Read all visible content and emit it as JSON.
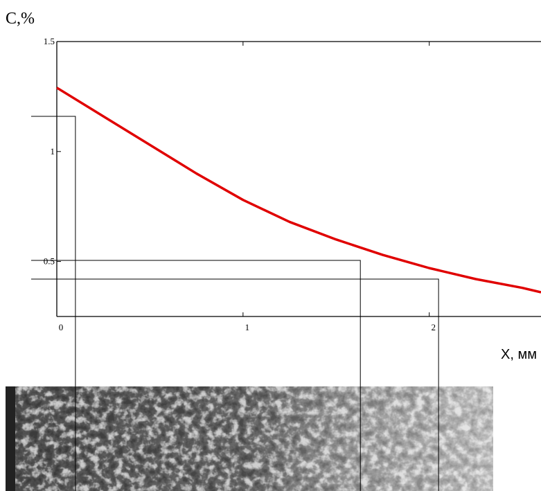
{
  "chart_data": {
    "type": "line",
    "y_label": "C,%",
    "x_label": "X, мм",
    "x": [
      0,
      0.25,
      0.5,
      0.75,
      1,
      1.25,
      1.5,
      1.75,
      2,
      2.25,
      2.5,
      2.6
    ],
    "values": [
      1.29,
      1.16,
      1.03,
      0.9,
      0.78,
      0.68,
      0.6,
      0.53,
      0.47,
      0.42,
      0.38,
      0.36
    ],
    "color": "#e00000",
    "xlim": [
      0,
      2.6
    ],
    "ylim": [
      0.25,
      1.5
    ],
    "xticks": [
      0,
      1,
      2
    ],
    "yticks": [
      0.5,
      1,
      1.5
    ],
    "guides": [
      {
        "x": 0.1,
        "y": 1.16
      },
      {
        "x": 1.63,
        "y": 0.505
      },
      {
        "x": 2.05,
        "y": 0.42
      }
    ]
  }
}
